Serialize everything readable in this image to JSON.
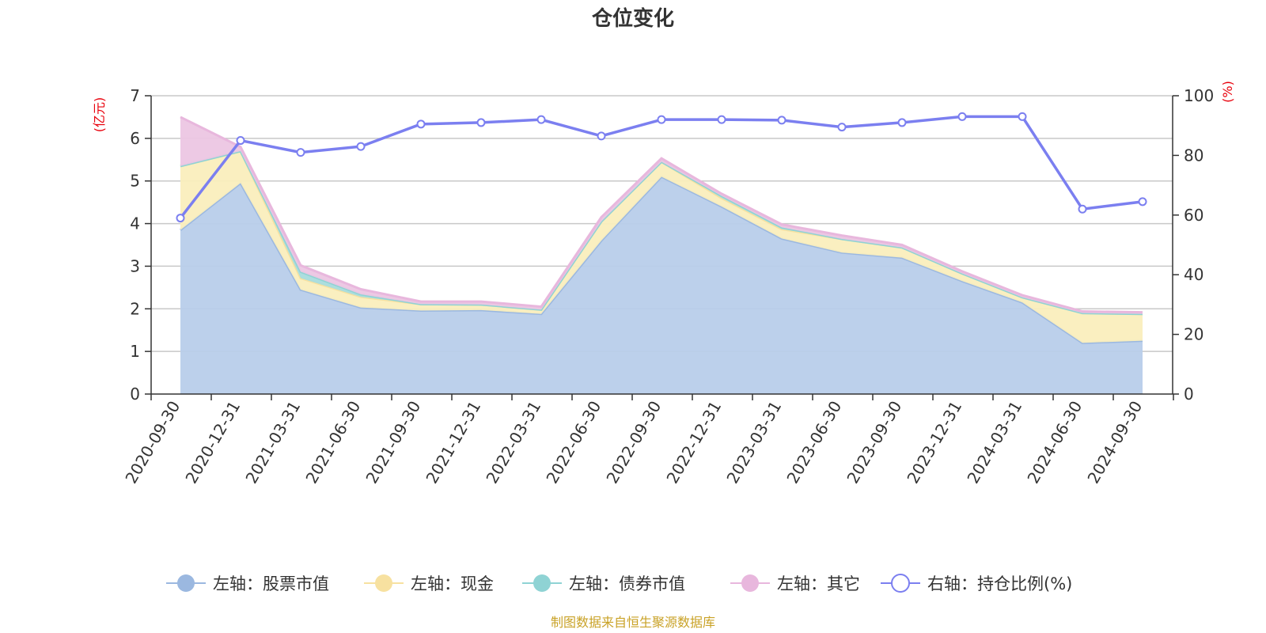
{
  "chart_data": {
    "type": "area",
    "title": "仓位变化",
    "left_axis_unit": "(亿元)",
    "right_axis_unit": "(%)",
    "categories": [
      "2020-09-30",
      "2020-12-31",
      "2021-03-31",
      "2021-06-30",
      "2021-09-30",
      "2021-12-31",
      "2022-03-31",
      "2022-06-30",
      "2022-09-30",
      "2022-12-31",
      "2023-03-31",
      "2023-06-30",
      "2023-09-30",
      "2023-12-31",
      "2024-03-31",
      "2024-06-30",
      "2024-09-30"
    ],
    "left_ylim": [
      0,
      7
    ],
    "left_ticks": [
      0,
      1,
      2,
      3,
      4,
      5,
      6,
      7
    ],
    "right_ylim": [
      0,
      100
    ],
    "right_ticks": [
      0,
      20,
      40,
      60,
      80,
      100
    ],
    "grid": true,
    "legend_position": "bottom",
    "series": [
      {
        "name": "左轴：股票市值",
        "axis": "left",
        "kind": "stacked-area",
        "color": "#9bb8e0",
        "fill": "#b8cdea",
        "values": [
          3.85,
          4.95,
          2.45,
          2.03,
          1.96,
          1.97,
          1.88,
          3.6,
          5.1,
          4.4,
          3.65,
          3.32,
          3.2,
          2.65,
          2.15,
          1.2,
          1.25
        ]
      },
      {
        "name": "左轴：现金",
        "axis": "left",
        "kind": "stacked-area",
        "color": "#f7e1a0",
        "fill": "#faeebd",
        "values": [
          1.5,
          0.75,
          0.27,
          0.25,
          0.15,
          0.13,
          0.1,
          0.45,
          0.35,
          0.2,
          0.22,
          0.32,
          0.24,
          0.18,
          0.12,
          0.7,
          0.63
        ]
      },
      {
        "name": "左轴：债券市值",
        "axis": "left",
        "kind": "stacked-area",
        "color": "#8fd3d4",
        "fill": "#a8dcdd",
        "values": [
          0,
          0,
          0.15,
          0.06,
          0,
          0,
          0,
          0,
          0,
          0.05,
          0.04,
          0,
          0,
          0,
          0,
          0,
          0
        ]
      },
      {
        "name": "左轴：其它",
        "axis": "left",
        "kind": "stacked-area",
        "color": "#e8b7dd",
        "fill": "#ecc6e3",
        "values": [
          1.15,
          0.1,
          0.15,
          0.12,
          0.06,
          0.07,
          0.07,
          0.1,
          0.08,
          0.05,
          0.07,
          0.08,
          0.06,
          0.05,
          0.05,
          0.04,
          0.04
        ]
      },
      {
        "name": "右轴：持仓比例(%)",
        "axis": "right",
        "kind": "line",
        "color": "#7b7ff0",
        "values": [
          59,
          85,
          81,
          83,
          90.5,
          91,
          92,
          86.5,
          92,
          92,
          91.8,
          89.5,
          91,
          93,
          93,
          62,
          64.5
        ]
      }
    ]
  },
  "footer": {
    "source": "制图数据来自恒生聚源数据库"
  }
}
